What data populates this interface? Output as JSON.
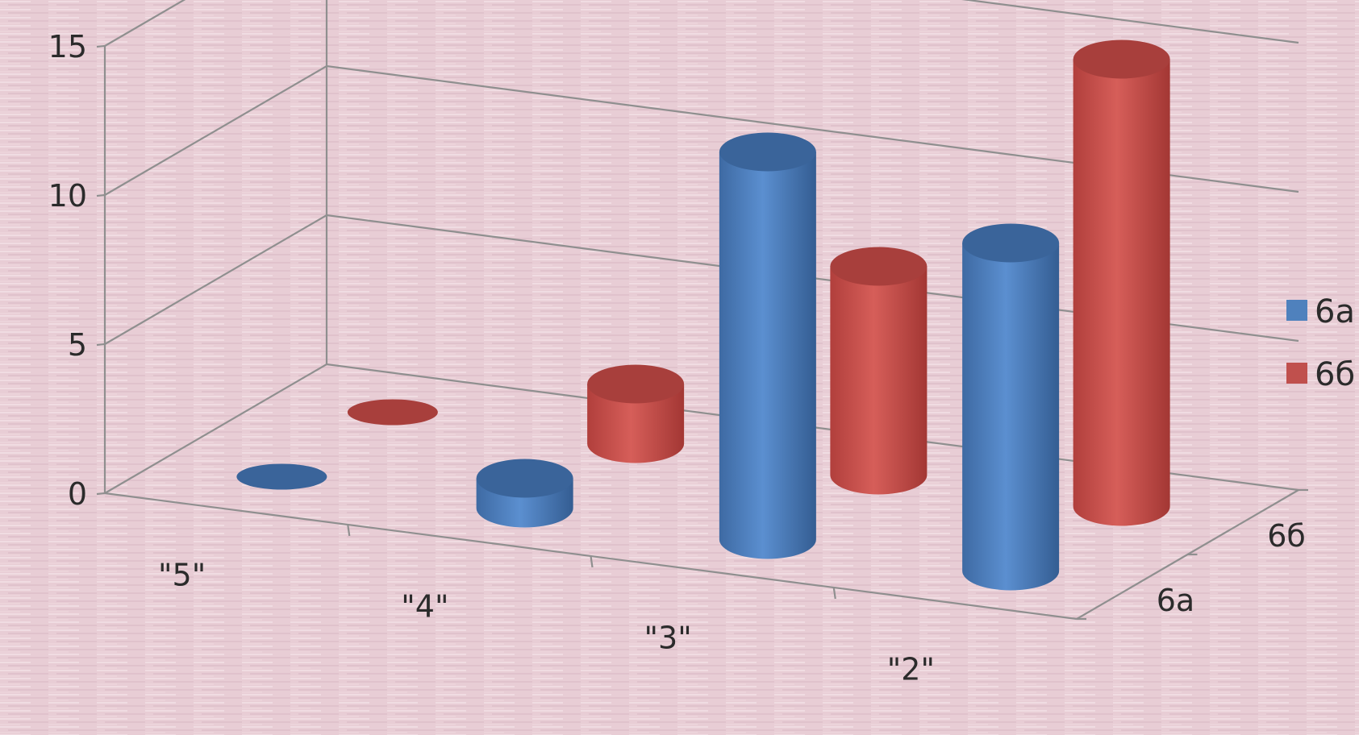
{
  "colors": {
    "background": "#e9cfd6",
    "series_6a": "#4f81bd",
    "series_6b": "#c0504d"
  },
  "chart_data": {
    "type": "bar",
    "style": "3d-cylinder",
    "categories": [
      "\"5\"",
      "\"4\"",
      "\"3\"",
      "\"2\""
    ],
    "series": [
      {
        "name": "6а",
        "values": [
          0,
          1,
          13,
          11
        ]
      },
      {
        "name": "6б",
        "values": [
          0,
          2,
          7,
          15
        ]
      }
    ],
    "depth_labels": [
      "6а",
      "6б"
    ],
    "yticks": [
      0,
      5,
      10,
      15
    ],
    "ylim": [
      0,
      15
    ],
    "grid": true,
    "legend": "right",
    "title": "",
    "xlabel": "",
    "ylabel": ""
  }
}
